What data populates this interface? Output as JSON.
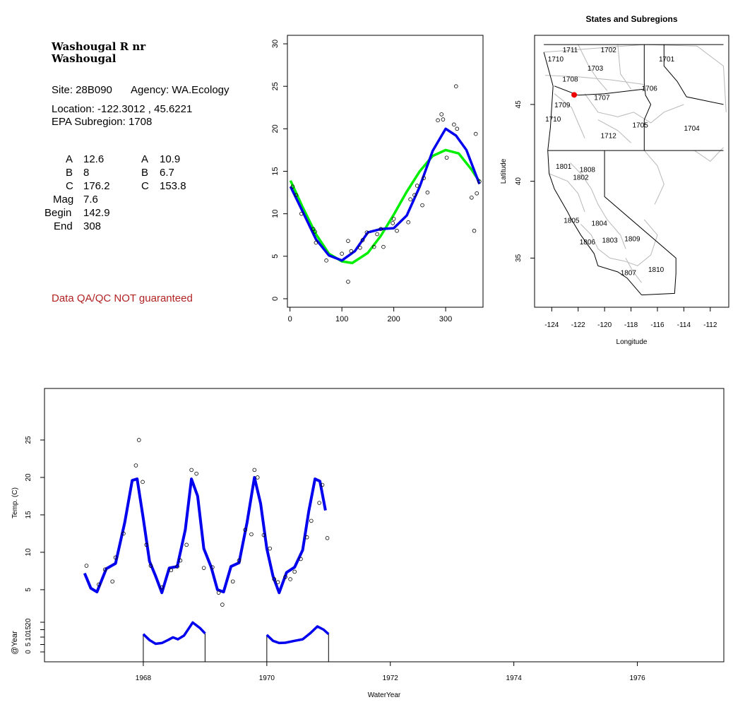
{
  "site_info": {
    "station_line1": "Washougal R nr",
    "station_line2": "Washougal",
    "site": "Site: 28B090",
    "agency": "Agency: WA.Ecology",
    "location": "Location: -122.3012 , 45.6221",
    "subregion": "EPA Subregion: 1708",
    "params": [
      {
        "label": "A",
        "v1": "12.6",
        "label2": "A",
        "v2": "10.9"
      },
      {
        "label": "B",
        "v1": "8",
        "label2": "B",
        "v2": "6.7"
      },
      {
        "label": "C",
        "v1": "176.2",
        "label2": "C",
        "v2": "153.8"
      },
      {
        "label": "Mag",
        "v1": "7.6",
        "label2": "",
        "v2": ""
      },
      {
        "label": "Begin",
        "v1": "142.9",
        "label2": "",
        "v2": ""
      },
      {
        "label": "End",
        "v1": "308",
        "label2": "",
        "v2": ""
      }
    ],
    "qa_note": "Data QA/QC NOT guaranteed",
    "qa_color": "#b22222"
  },
  "chart_data": [
    {
      "type": "scatter",
      "title": "",
      "xlabel": "",
      "ylabel": "",
      "xlim": [
        -5,
        372
      ],
      "ylim": [
        -1,
        31
      ],
      "xticks": [
        0,
        100,
        200,
        300
      ],
      "yticks": [
        0,
        5,
        10,
        15,
        20,
        25,
        30
      ],
      "points": [
        [
          5,
          13.2
        ],
        [
          12,
          12.2
        ],
        [
          22,
          10
        ],
        [
          45,
          8.2
        ],
        [
          48,
          7.9
        ],
        [
          50,
          6.6
        ],
        [
          70,
          4.5
        ],
        [
          100,
          5.3
        ],
        [
          112,
          6.8
        ],
        [
          112,
          2
        ],
        [
          118,
          5.6
        ],
        [
          135,
          6
        ],
        [
          140,
          6.9
        ],
        [
          148,
          7.8
        ],
        [
          162,
          6.1
        ],
        [
          168,
          7.6
        ],
        [
          175,
          8.2
        ],
        [
          180,
          6.1
        ],
        [
          198,
          8.9
        ],
        [
          200,
          9.4
        ],
        [
          206,
          8
        ],
        [
          228,
          9
        ],
        [
          232,
          11.7
        ],
        [
          240,
          12.2
        ],
        [
          245,
          13.3
        ],
        [
          255,
          11
        ],
        [
          258,
          14.2
        ],
        [
          265,
          12.5
        ],
        [
          285,
          21
        ],
        [
          292,
          21.7
        ],
        [
          295,
          21.1
        ],
        [
          302,
          16.6
        ],
        [
          316,
          20.5
        ],
        [
          320,
          25
        ],
        [
          322,
          20
        ],
        [
          350,
          11.9
        ],
        [
          355,
          8
        ],
        [
          358,
          19.4
        ],
        [
          360,
          12.4
        ],
        [
          365,
          13.8
        ]
      ],
      "series": [
        {
          "name": "",
          "color": "#00ee00",
          "curve": [
            [
              1,
              13.9
            ],
            [
              25,
              10.7
            ],
            [
              50,
              7.6
            ],
            [
              75,
              5.3
            ],
            [
              100,
              4.4
            ],
            [
              120,
              4.2
            ],
            [
              150,
              5.4
            ],
            [
              175,
              7.4
            ],
            [
              200,
              9.9
            ],
            [
              225,
              12.6
            ],
            [
              250,
              15
            ],
            [
              275,
              16.8
            ],
            [
              300,
              17.5
            ],
            [
              325,
              17.1
            ],
            [
              350,
              15.2
            ],
            [
              365,
              13.8
            ]
          ]
        },
        {
          "name": "",
          "color": "#0000ee",
          "curve": [
            [
              1,
              13.2
            ],
            [
              25,
              10.2
            ],
            [
              50,
              7
            ],
            [
              75,
              5.1
            ],
            [
              100,
              4.5
            ],
            [
              125,
              5.6
            ],
            [
              150,
              7.8
            ],
            [
              175,
              8.2
            ],
            [
              200,
              8.3
            ],
            [
              225,
              9.8
            ],
            [
              250,
              13.2
            ],
            [
              275,
              17.4
            ],
            [
              300,
              20
            ],
            [
              320,
              19.2
            ],
            [
              340,
              17.5
            ],
            [
              365,
              13.5
            ]
          ]
        }
      ]
    },
    {
      "type": "map",
      "title": "States and Subregions",
      "xlabel": "Longitude",
      "ylabel": "Latitude",
      "xlim": [
        -125.3,
        -110.6
      ],
      "ylim": [
        31.8,
        49.5
      ],
      "xticks": [
        -124,
        -122,
        -120,
        -118,
        -116,
        -114,
        -112
      ],
      "yticks": [
        35,
        40,
        45
      ],
      "regions": [
        {
          "label": "1711",
          "lon": -122.6,
          "lat": 48.4
        },
        {
          "label": "1702",
          "lon": -119.7,
          "lat": 48.4
        },
        {
          "label": "1701",
          "lon": -115.3,
          "lat": 47.8
        },
        {
          "label": "1710",
          "lon": -123.7,
          "lat": 47.8
        },
        {
          "label": "1703",
          "lon": -120.7,
          "lat": 47.2
        },
        {
          "label": "1708",
          "lon": -122.6,
          "lat": 46.5
        },
        {
          "label": "1706",
          "lon": -116.6,
          "lat": 45.9
        },
        {
          "label": "1707",
          "lon": -120.2,
          "lat": 45.3
        },
        {
          "label": "1709",
          "lon": -123.2,
          "lat": 44.8
        },
        {
          "label": "1710",
          "lon": -123.9,
          "lat": 43.9
        },
        {
          "label": "1705",
          "lon": -117.3,
          "lat": 43.5
        },
        {
          "label": "1704",
          "lon": -113.4,
          "lat": 43.3
        },
        {
          "label": "1712",
          "lon": -119.7,
          "lat": 42.8
        },
        {
          "label": "1801",
          "lon": -123.1,
          "lat": 40.8
        },
        {
          "label": "1808",
          "lon": -121.3,
          "lat": 40.6
        },
        {
          "label": "1802",
          "lon": -121.8,
          "lat": 40.1
        },
        {
          "label": "1805",
          "lon": -122.5,
          "lat": 37.3
        },
        {
          "label": "1804",
          "lon": -120.4,
          "lat": 37.1
        },
        {
          "label": "1806",
          "lon": -121.3,
          "lat": 35.9
        },
        {
          "label": "1803",
          "lon": -119.6,
          "lat": 36
        },
        {
          "label": "1809",
          "lon": -117.9,
          "lat": 36.1
        },
        {
          "label": "1807",
          "lon": -118.2,
          "lat": 33.9
        },
        {
          "label": "1810",
          "lon": -116.1,
          "lat": 34.1
        }
      ],
      "site_point": {
        "lon": -122.3012,
        "lat": 45.6221,
        "color": "#ee0000"
      }
    },
    {
      "type": "line",
      "title": "",
      "xlabel": "WaterYear",
      "ylabel": "Temp. (C)",
      "ylabel2": "@Year",
      "xlim": [
        1966.4,
        1977.4
      ],
      "ylim": [
        1.5,
        30
      ],
      "xticks": [
        1968,
        1970,
        1972,
        1974,
        1976
      ],
      "yticks": [
        5,
        10,
        15,
        20,
        25
      ],
      "yticks2": [
        0,
        5,
        10,
        15,
        20
      ],
      "points": [
        [
          1967.08,
          8.2
        ],
        [
          1967.28,
          5.7
        ],
        [
          1967.38,
          7.7
        ],
        [
          1967.5,
          6.1
        ],
        [
          1967.55,
          9.3
        ],
        [
          1967.68,
          12.5
        ],
        [
          1967.88,
          21.6
        ],
        [
          1967.93,
          25
        ],
        [
          1967.99,
          19.4
        ],
        [
          1968.05,
          11
        ],
        [
          1968.12,
          8.2
        ],
        [
          1968.3,
          5.3
        ],
        [
          1968.45,
          7.6
        ],
        [
          1968.55,
          8.1
        ],
        [
          1968.6,
          8.9
        ],
        [
          1968.7,
          11
        ],
        [
          1968.78,
          21
        ],
        [
          1968.86,
          20.5
        ],
        [
          1968.98,
          7.9
        ],
        [
          1969.12,
          8
        ],
        [
          1969.22,
          4.6
        ],
        [
          1969.28,
          3
        ],
        [
          1969.45,
          6.1
        ],
        [
          1969.55,
          8.9
        ],
        [
          1969.65,
          13
        ],
        [
          1969.75,
          12.4
        ],
        [
          1969.8,
          21
        ],
        [
          1969.85,
          20
        ],
        [
          1969.95,
          12.3
        ],
        [
          1970.05,
          10.5
        ],
        [
          1970.12,
          6.4
        ],
        [
          1970.18,
          6
        ],
        [
          1970.3,
          6.7
        ],
        [
          1970.38,
          6.4
        ],
        [
          1970.45,
          7.4
        ],
        [
          1970.55,
          9.1
        ],
        [
          1970.65,
          12
        ],
        [
          1970.72,
          14.2
        ],
        [
          1970.85,
          16.6
        ],
        [
          1970.9,
          19
        ],
        [
          1970.98,
          11.9
        ]
      ],
      "series": [
        {
          "name": "",
          "color": "#0000ee",
          "curve": [
            [
              1967.05,
              7.2
            ],
            [
              1967.15,
              5.2
            ],
            [
              1967.25,
              4.7
            ],
            [
              1967.4,
              7.8
            ],
            [
              1967.55,
              8.5
            ],
            [
              1967.7,
              14
            ],
            [
              1967.82,
              19.6
            ],
            [
              1967.9,
              19.8
            ],
            [
              1968,
              14.5
            ],
            [
              1968.1,
              8.8
            ],
            [
              1968.2,
              6.8
            ],
            [
              1968.3,
              4.6
            ],
            [
              1968.42,
              7.9
            ],
            [
              1968.55,
              8.1
            ],
            [
              1968.68,
              13
            ],
            [
              1968.78,
              19.8
            ],
            [
              1968.88,
              17.5
            ],
            [
              1968.98,
              10.5
            ],
            [
              1969.1,
              8
            ],
            [
              1969.2,
              5
            ],
            [
              1969.3,
              4.7
            ],
            [
              1969.42,
              8.1
            ],
            [
              1969.55,
              8.6
            ],
            [
              1969.68,
              14
            ],
            [
              1969.8,
              20
            ],
            [
              1969.9,
              16.5
            ],
            [
              1970,
              10.5
            ],
            [
              1970.1,
              6.8
            ],
            [
              1970.2,
              4.6
            ],
            [
              1970.32,
              7.3
            ],
            [
              1970.45,
              8
            ],
            [
              1970.58,
              10.3
            ],
            [
              1970.68,
              15.5
            ],
            [
              1970.78,
              19.8
            ],
            [
              1970.86,
              19.5
            ],
            [
              1970.95,
              15.6
            ]
          ]
        },
        {
          "name": "",
          "color": "#0000ee",
          "panel": "year",
          "segments": [
            [
              [
                1968,
                12
              ],
              [
                1968.1,
                8
              ],
              [
                1968.2,
                5.5
              ],
              [
                1968.3,
                6
              ],
              [
                1968.4,
                8
              ],
              [
                1968.48,
                9.8
              ],
              [
                1968.56,
                8.5
              ],
              [
                1968.66,
                11
              ],
              [
                1968.8,
                19.8
              ],
              [
                1968.92,
                16
              ],
              [
                1969,
                12.5
              ]
            ],
            [
              [
                1970,
                11.5
              ],
              [
                1970.1,
                7.5
              ],
              [
                1970.2,
                6
              ],
              [
                1970.3,
                6.2
              ],
              [
                1970.45,
                7.5
              ],
              [
                1970.58,
                8.5
              ],
              [
                1970.7,
                12.5
              ],
              [
                1970.82,
                17.2
              ],
              [
                1970.92,
                15
              ],
              [
                1971,
                12
              ]
            ]
          ]
        }
      ]
    }
  ]
}
